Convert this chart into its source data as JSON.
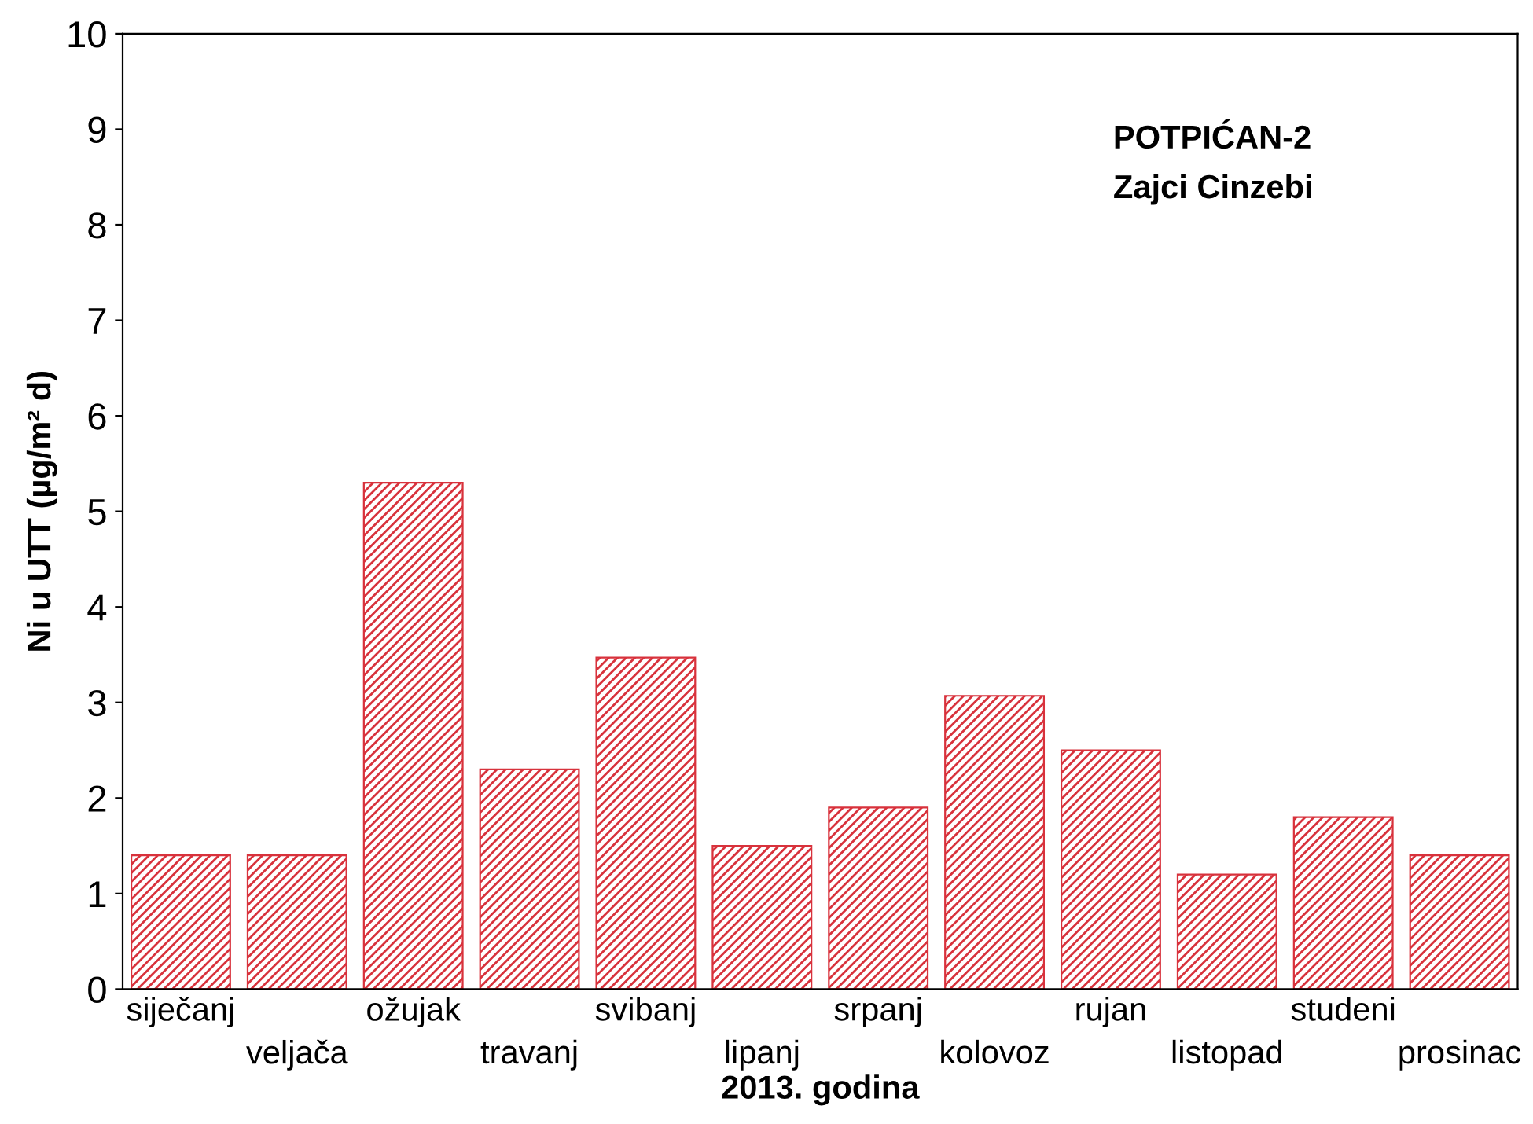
{
  "chart_data": {
    "type": "bar",
    "annotations": [
      "POTPIĆAN-2",
      "Zajci Cinzebi"
    ],
    "xlabel": "2013. godina",
    "ylabel": "Ni u UTT (µg/m² d)",
    "categories": [
      "siječanj",
      "veljača",
      "ožujak",
      "travanj",
      "svibanj",
      "lipanj",
      "srpanj",
      "kolovoz",
      "rujan",
      "listopad",
      "studeni",
      "prosinac"
    ],
    "values": [
      1.4,
      1.4,
      5.3,
      2.3,
      3.47,
      1.5,
      1.9,
      3.07,
      2.5,
      1.2,
      1.8,
      1.4
    ],
    "color": "#d8323c",
    "ylim": [
      0,
      10
    ],
    "yticks": [
      0,
      1,
      2,
      3,
      4,
      5,
      6,
      7,
      8,
      9,
      10
    ],
    "grid": false
  }
}
